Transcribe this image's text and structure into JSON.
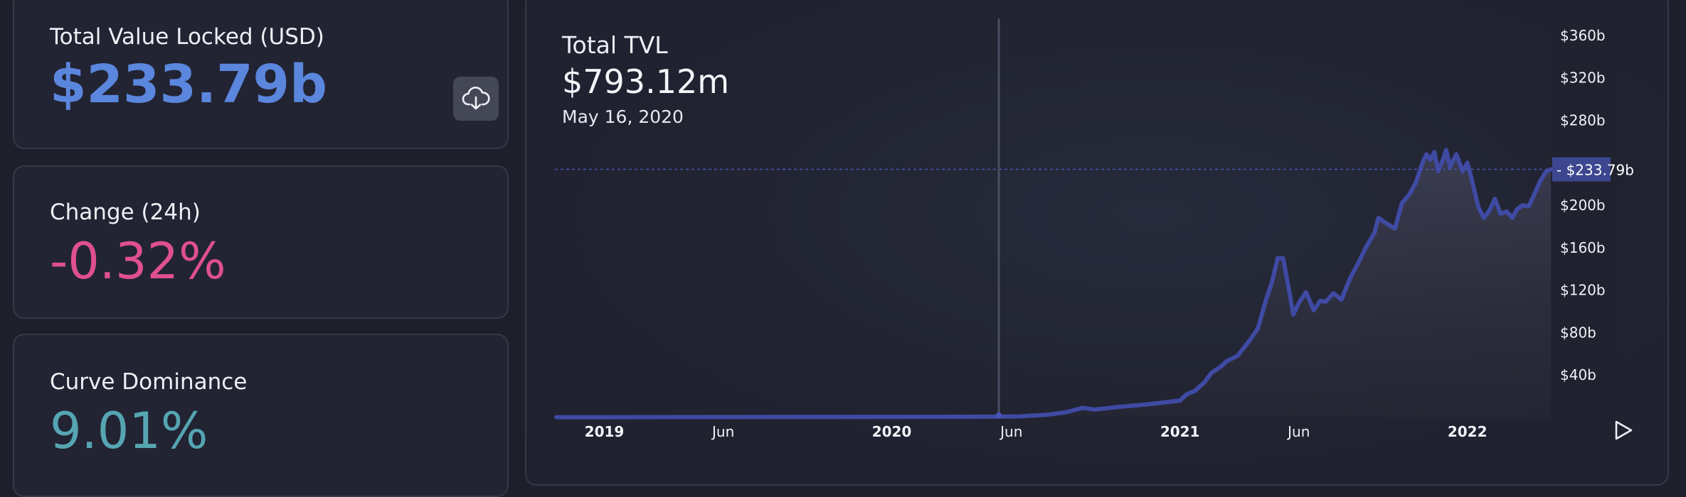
{
  "cards": {
    "tvl": {
      "label": "Total Value Locked (USD)",
      "value": "$233.79b"
    },
    "change": {
      "label": "Change (24h)",
      "value": "-0.32%"
    },
    "dominance": {
      "label": "Curve Dominance",
      "value": "9.01%"
    }
  },
  "colors": {
    "tvl_value": "#5b86dd",
    "change_value": "#e0508e",
    "dominance_value": "#56a5b2",
    "line": "#3f4aa3",
    "highlight_badge": "#3d478f"
  },
  "icons": {
    "download": "cloud-download-icon",
    "play": "play-icon"
  },
  "chart_header": {
    "title": "Total TVL",
    "hover_value": "$793.12m",
    "hover_date": "May 16, 2020"
  },
  "chart_data": {
    "type": "area",
    "title": "Total TVL",
    "ylabel_unit": "USD billions",
    "ylim": [
      0,
      380
    ],
    "yticks": [
      {
        "value": 40,
        "label": "$40b"
      },
      {
        "value": 80,
        "label": "$80b"
      },
      {
        "value": 120,
        "label": "$120b"
      },
      {
        "value": 160,
        "label": "$160b"
      },
      {
        "value": 200,
        "label": "$200b"
      },
      {
        "value": 280,
        "label": "$280b"
      },
      {
        "value": 320,
        "label": "$320b"
      },
      {
        "value": 360,
        "label": "$360b"
      }
    ],
    "xlim": [
      "2018-11-01",
      "2022-04-17"
    ],
    "xticks": [
      {
        "date": "2019-01-01",
        "label": "2019"
      },
      {
        "date": "2019-06-01",
        "label": "Jun"
      },
      {
        "date": "2020-01-01",
        "label": "2020"
      },
      {
        "date": "2020-06-01",
        "label": "Jun"
      },
      {
        "date": "2021-01-01",
        "label": "2021"
      },
      {
        "date": "2021-06-01",
        "label": "Jun"
      },
      {
        "date": "2022-01-01",
        "label": "2022"
      }
    ],
    "current": {
      "value": 233.79,
      "label": "$233.79b"
    },
    "hover": {
      "date": "2020-05-16",
      "value": 0.79312
    },
    "series": [
      {
        "x": [
          "2018-11-01",
          "2019-01-01",
          "2019-03-01",
          "2019-06-01",
          "2019-09-01",
          "2020-01-01",
          "2020-03-01",
          "2020-05-16",
          "2020-06-10",
          "2020-07-15",
          "2020-08-10",
          "2020-08-30",
          "2020-09-15",
          "2020-10-15",
          "2020-11-15",
          "2020-12-10",
          "2021-01-01",
          "2021-01-10",
          "2021-01-20",
          "2021-02-01",
          "2021-02-10",
          "2021-02-22",
          "2021-03-01",
          "2021-03-15",
          "2021-04-01",
          "2021-04-10",
          "2021-04-20",
          "2021-04-28",
          "2021-05-05",
          "2021-05-12",
          "2021-05-20",
          "2021-05-25",
          "2021-06-01",
          "2021-06-10",
          "2021-06-20",
          "2021-06-28",
          "2021-07-05",
          "2021-07-15",
          "2021-07-25",
          "2021-08-05",
          "2021-08-15",
          "2021-08-25",
          "2021-09-05",
          "2021-09-10",
          "2021-09-20",
          "2021-10-01",
          "2021-10-10",
          "2021-10-20",
          "2021-10-28",
          "2021-11-05",
          "2021-11-10",
          "2021-11-15",
          "2021-11-20",
          "2021-11-25",
          "2021-12-01",
          "2021-12-05",
          "2021-12-10",
          "2021-12-18",
          "2021-12-26",
          "2022-01-01",
          "2022-01-08",
          "2022-01-15",
          "2022-01-22",
          "2022-01-29",
          "2022-02-05",
          "2022-02-12",
          "2022-02-20",
          "2022-02-27",
          "2022-03-05",
          "2022-03-12",
          "2022-03-20",
          "2022-03-28",
          "2022-04-03",
          "2022-04-10",
          "2022-04-17"
        ],
        "values": [
          0.3,
          0.3,
          0.35,
          0.4,
          0.45,
          0.6,
          0.7,
          0.8,
          1.0,
          2.5,
          5.0,
          9.0,
          7.5,
          10.0,
          12.0,
          14.0,
          16.0,
          22.0,
          25.0,
          33.0,
          42.0,
          48.0,
          53.0,
          58.0,
          74.0,
          84.0,
          110.0,
          128.0,
          150.0,
          150.0,
          118.0,
          97.0,
          108.0,
          118.0,
          101.0,
          110.0,
          109.0,
          117.0,
          111.0,
          131.0,
          145.0,
          160.0,
          174.0,
          188.0,
          183.0,
          178.0,
          202.0,
          211.0,
          222.0,
          240.0,
          248.0,
          243.0,
          250.0,
          232.0,
          243.0,
          252.0,
          236.0,
          248.0,
          232.0,
          240.0,
          220.0,
          198.0,
          188.0,
          195.0,
          206.0,
          192.0,
          194.0,
          188.0,
          196.0,
          200.0,
          199.0,
          212.0,
          222.0,
          231.0,
          233.79
        ]
      }
    ]
  }
}
